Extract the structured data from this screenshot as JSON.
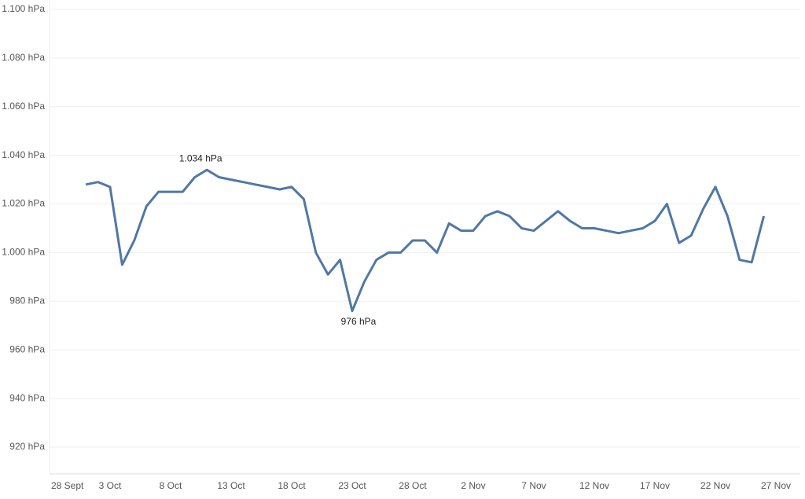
{
  "chart_data": {
    "type": "line",
    "x": [
      "28 Sept",
      null,
      null,
      null,
      null,
      "3 Oct",
      null,
      null,
      null,
      null,
      "8 Oct",
      null,
      null,
      null,
      null,
      "13 Oct",
      null,
      null,
      null,
      null,
      "18 Oct",
      null,
      null,
      null,
      null,
      "23 Oct",
      null,
      null,
      null,
      null,
      "28 Oct",
      null,
      null,
      null,
      null,
      "2 Nov",
      null,
      null,
      null,
      null,
      "7 Nov",
      null,
      null,
      null,
      null,
      "12 Nov",
      null,
      null,
      null,
      null,
      "17 Nov",
      null,
      null,
      null,
      null,
      "22 Nov",
      null,
      null,
      null,
      null,
      "27 Nov"
    ],
    "series": [
      {
        "color": "#4f78a6",
        "values": [
          null,
          null,
          null,
          1028,
          1029,
          1027,
          995,
          1005,
          1019,
          1025,
          1025,
          1025,
          1031,
          1034,
          1031,
          1030,
          1029,
          1028,
          1027,
          1026,
          1027,
          1022,
          1000,
          991,
          997,
          976,
          988,
          997,
          1000,
          1000,
          1005,
          1005,
          1000,
          1012,
          1009,
          1009,
          1015,
          1017,
          1015,
          1010,
          1009,
          1013,
          1017,
          1013,
          1010,
          1010,
          1009,
          1008,
          1009,
          1010,
          1013,
          1020,
          1004,
          1007,
          1018,
          1027,
          1015,
          997,
          996,
          1015,
          null
        ]
      }
    ],
    "annotations": [
      "1.034 hPa",
      "976 hPa"
    ],
    "ylim": [
      909,
      1100
    ],
    "yticks": [
      {
        "value": 920,
        "label": "920 hPa"
      },
      {
        "value": 940,
        "label": "940 hPa"
      },
      {
        "value": 960,
        "label": "960 hPa"
      },
      {
        "value": 980,
        "label": "980 hPa"
      },
      {
        "value": 1000,
        "label": "1.000 hPa"
      },
      {
        "value": 1020,
        "label": "1.020 hPa"
      },
      {
        "value": 1040,
        "label": "1.040 hPa"
      },
      {
        "value": 1060,
        "label": "1.060 hPa"
      },
      {
        "value": 1080,
        "label": "1.080 hPa"
      },
      {
        "value": 1100,
        "label": "1.100 hPa"
      }
    ],
    "grid": true
  }
}
